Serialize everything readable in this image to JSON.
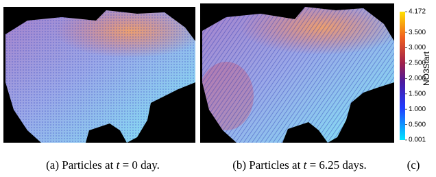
{
  "figure": {
    "panels": [
      {
        "label": "(a)",
        "text": "Particles at",
        "var": "t",
        "rest": "= 0 day."
      },
      {
        "label": "(b)",
        "text": "Particles at",
        "var": "t",
        "rest": "= 6.25 days."
      }
    ],
    "colorbar": {
      "panel_label": "(c)",
      "title": "NO3Start",
      "range": [
        0.001,
        4.172
      ],
      "ticks": [
        {
          "value": 4.172,
          "label": "4.172"
        },
        {
          "value": 3.5,
          "label": "3.500"
        },
        {
          "value": 3.0,
          "label": "3.000"
        },
        {
          "value": 2.5,
          "label": "2.500"
        },
        {
          "value": 2.0,
          "label": "2.000"
        },
        {
          "value": 1.5,
          "label": "1.500"
        },
        {
          "value": 1.0,
          "label": "1.000"
        },
        {
          "value": 0.5,
          "label": "0.500"
        },
        {
          "value": 0.001,
          "label": "0.001"
        }
      ]
    }
  }
}
